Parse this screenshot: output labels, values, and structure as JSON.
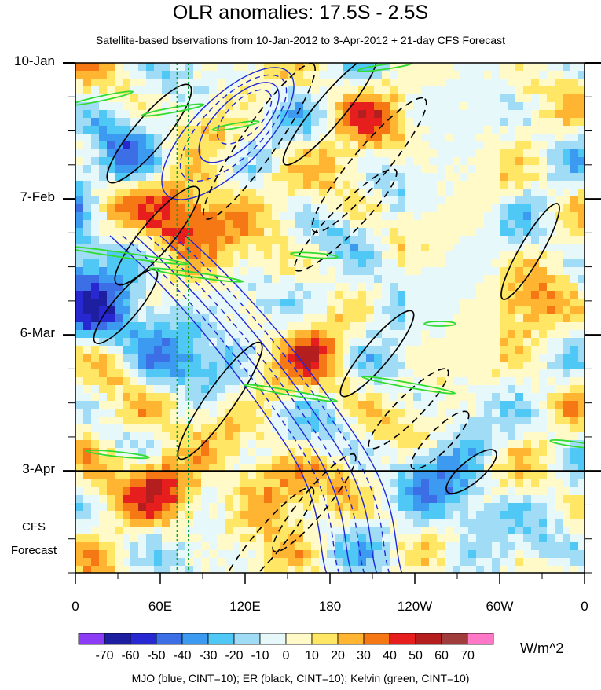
{
  "chart_data": {
    "type": "heatmap",
    "title": "OLR anomalies: 17.5S - 2.5S",
    "subtitle": "Satellite-based bservations from 10-Jan-2012 to 3-Apr-2012 + 21-day CFS Forecast",
    "xlabel": "",
    "ylabel": "",
    "x_ticks": [
      "0",
      "60E",
      "120E",
      "180",
      "120W",
      "60W",
      "0"
    ],
    "x_tick_lon": [
      0,
      60,
      120,
      180,
      240,
      300,
      360
    ],
    "y_ticks": [
      "10-Jan",
      "7-Feb",
      "6-Mar",
      "3-Apr"
    ],
    "y_tick_day": [
      0,
      28,
      56,
      84
    ],
    "y_range_days": [
      0,
      105
    ],
    "forecast_start_day": 84,
    "forecast_label_line1": "CFS",
    "forecast_label_line2": "Forecast",
    "colorbar": {
      "labels": [
        "-70",
        "-60",
        "-50",
        "-40",
        "-30",
        "-20",
        "-10",
        "0",
        "10",
        "20",
        "30",
        "40",
        "50",
        "60",
        "70"
      ],
      "colors": [
        "#8c3cf5",
        "#1e1ea0",
        "#2828d2",
        "#3c6ee6",
        "#3c9bf0",
        "#50c8f5",
        "#a0dcf5",
        "#e6f8fa",
        "#fffac8",
        "#ffe664",
        "#ffb432",
        "#f57814",
        "#e61e1e",
        "#b41e1e",
        "#a03c3c",
        "#ff78c8"
      ],
      "units": "W/m^2"
    },
    "contour_info": "MJO (blue, CINT=10); ER (black, CINT=10); Kelvin (green, CINT=10)",
    "contour_colors": {
      "MJO": "#1e28dc",
      "ER": "#000000",
      "Kelvin": "#32dc32",
      "reference_lines": "#14a03c"
    },
    "reference_lon": [
      72,
      80
    ]
  }
}
